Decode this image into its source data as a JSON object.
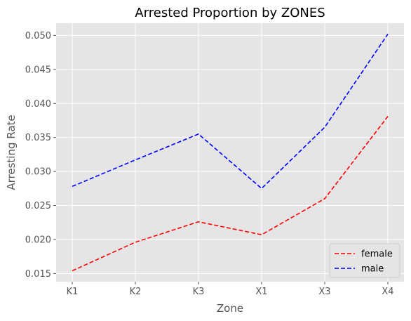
{
  "chart_data": {
    "type": "line",
    "title": "Arrested Proportion by ZONES",
    "xlabel": "Zone",
    "ylabel": "Arresting Rate",
    "categories": [
      "K1",
      "K2",
      "K3",
      "X1",
      "X3",
      "X4"
    ],
    "ylim": [
      0.0138,
      0.0518
    ],
    "yticks": [
      "0.015",
      "0.020",
      "0.025",
      "0.030",
      "0.035",
      "0.040",
      "0.045",
      "0.050"
    ],
    "grid": true,
    "legend_position": "lower-right",
    "background_color": "#e5e5e5",
    "series": [
      {
        "name": "female",
        "color": "#ff0000",
        "linestyle": "dashed",
        "values": [
          0.0154,
          0.0196,
          0.0226,
          0.0207,
          0.026,
          0.0381
        ]
      },
      {
        "name": "male",
        "color": "#0000ff",
        "linestyle": "dashed",
        "values": [
          0.0278,
          0.0317,
          0.0355,
          0.0275,
          0.0365,
          0.0502
        ]
      }
    ]
  }
}
